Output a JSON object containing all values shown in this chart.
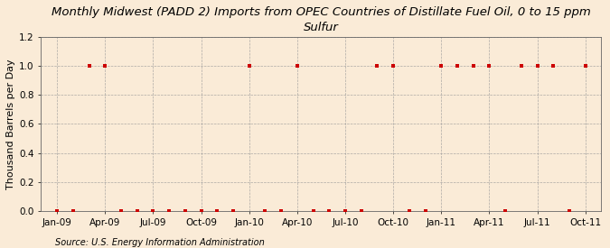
{
  "title": "Monthly Midwest (PADD 2) Imports from OPEC Countries of Distillate Fuel Oil, 0 to 15 ppm\nSulfur",
  "ylabel": "Thousand Barrels per Day",
  "source": "Source: U.S. Energy Information Administration",
  "background_color": "#faebd7",
  "plot_bg_color": "#faebd7",
  "marker_color": "#cc0000",
  "grid_color": "#999999",
  "tick_labels": [
    "Jan-09",
    "Apr-09",
    "Jul-09",
    "Oct-09",
    "Jan-10",
    "Apr-10",
    "Jul-10",
    "Oct-10",
    "Jan-11",
    "Apr-11",
    "Jul-11",
    "Oct-11"
  ],
  "x_values": [
    1,
    2,
    3,
    4,
    5,
    6,
    7,
    8,
    9,
    10,
    11,
    12,
    13,
    14,
    15,
    16,
    17,
    18,
    19,
    20,
    21,
    22,
    23,
    24,
    25,
    26,
    27,
    28,
    29,
    30,
    31,
    32,
    33,
    34
  ],
  "y_values": [
    0.0,
    0.0,
    1.0,
    1.0,
    0.0,
    0.0,
    0.0,
    0.0,
    0.0,
    0.0,
    0.0,
    0.0,
    1.0,
    0.0,
    0.0,
    1.0,
    0.0,
    0.0,
    0.0,
    0.0,
    1.0,
    1.0,
    0.0,
    0.0,
    1.0,
    1.0,
    1.0,
    1.0,
    0.0,
    1.0,
    1.0,
    1.0,
    0.0,
    1.0
  ],
  "ylim": [
    0.0,
    1.2
  ],
  "yticks": [
    0.0,
    0.2,
    0.4,
    0.6,
    0.8,
    1.0,
    1.2
  ],
  "xtick_positions": [
    1,
    4,
    7,
    10,
    13,
    16,
    19,
    22,
    25,
    28,
    31,
    34
  ],
  "xlim": [
    0,
    35
  ],
  "title_fontsize": 9.5,
  "ylabel_fontsize": 8,
  "tick_fontsize": 7.5,
  "source_fontsize": 7
}
